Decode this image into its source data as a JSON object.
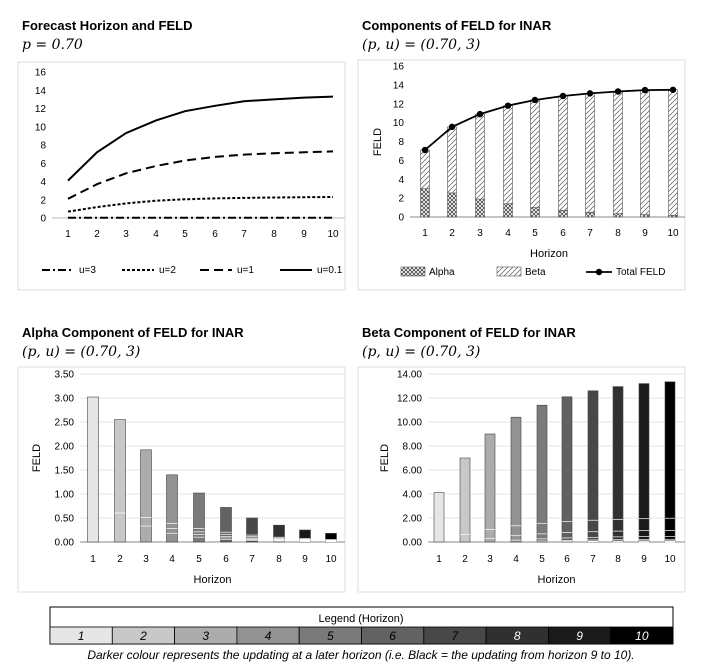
{
  "chart_data": [
    {
      "type": "line",
      "title": "Forecast Horizon and FELD",
      "subtitle": "p = 0.70",
      "x": [
        1,
        2,
        3,
        4,
        5,
        6,
        7,
        8,
        9,
        10
      ],
      "ylim": [
        0,
        16
      ],
      "yticks": [
        "0",
        "2",
        "4",
        "6",
        "8",
        "10",
        "12",
        "14",
        "16"
      ],
      "series": [
        {
          "name": "u=3",
          "style": "dashdot",
          "values": [
            0.02,
            0.02,
            0.02,
            0.02,
            0.02,
            0.02,
            0.02,
            0.02,
            0.02,
            0.02
          ]
        },
        {
          "name": "u=2",
          "style": "dotted",
          "values": [
            0.7,
            1.2,
            1.6,
            1.9,
            2.05,
            2.15,
            2.2,
            2.25,
            2.28,
            2.3
          ]
        },
        {
          "name": "u=1",
          "style": "dashed",
          "values": [
            2.1,
            3.7,
            4.9,
            5.7,
            6.3,
            6.7,
            6.95,
            7.1,
            7.2,
            7.3
          ]
        },
        {
          "name": "u=0.1",
          "style": "solid",
          "values": [
            4.1,
            7.2,
            9.3,
            10.7,
            11.7,
            12.3,
            12.8,
            13.0,
            13.2,
            13.3
          ]
        }
      ]
    },
    {
      "type": "bar",
      "title": "Components of FELD for INAR",
      "subtitle": "(p, u) = (0.70, 3)",
      "categories": [
        "1",
        "2",
        "3",
        "4",
        "5",
        "6",
        "7",
        "8",
        "9",
        "10"
      ],
      "ylim": [
        0,
        16
      ],
      "yticks": [
        "0",
        "2",
        "4",
        "6",
        "8",
        "10",
        "12",
        "14",
        "16"
      ],
      "xlabel": "Horizon",
      "ylabel": "FELD",
      "series": [
        {
          "name": "Alpha",
          "values": [
            3.0,
            2.55,
            1.9,
            1.4,
            1.0,
            0.72,
            0.5,
            0.35,
            0.25,
            0.18
          ]
        },
        {
          "name": "Beta",
          "values": [
            4.1,
            7.0,
            9.0,
            10.4,
            11.4,
            12.1,
            12.6,
            12.95,
            13.2,
            13.3
          ]
        },
        {
          "name": "Total FELD",
          "values": [
            7.1,
            9.55,
            10.9,
            11.8,
            12.4,
            12.82,
            13.1,
            13.3,
            13.45,
            13.48
          ]
        }
      ]
    },
    {
      "type": "bar",
      "title": "Alpha Component of FELD for INAR",
      "subtitle": "(p, u) = (0.70, 3)",
      "categories": [
        "1",
        "2",
        "3",
        "4",
        "5",
        "6",
        "7",
        "8",
        "9",
        "10"
      ],
      "ylim": [
        0,
        3.5
      ],
      "yticks": [
        "0.00",
        "0.50",
        "1.00",
        "1.50",
        "2.00",
        "2.50",
        "3.00",
        "3.50"
      ],
      "xlabel": "Horizon",
      "ylabel": "FELD",
      "values": [
        3.02,
        2.55,
        1.92,
        1.4,
        1.02,
        0.72,
        0.5,
        0.35,
        0.25,
        0.18
      ]
    },
    {
      "type": "bar",
      "title": "Beta Component of FELD for INAR",
      "subtitle": "(p, u) = (0.70, 3)",
      "categories": [
        "1",
        "2",
        "3",
        "4",
        "5",
        "6",
        "7",
        "8",
        "9",
        "10"
      ],
      "ylim": [
        0,
        14
      ],
      "yticks": [
        "0.00",
        "2.00",
        "4.00",
        "6.00",
        "8.00",
        "10.00",
        "12.00",
        "14.00"
      ],
      "xlabel": "Horizon",
      "ylabel": "FELD",
      "values": [
        4.12,
        7.0,
        9.0,
        10.4,
        11.4,
        12.1,
        12.6,
        12.95,
        13.2,
        13.35
      ]
    }
  ],
  "legend": {
    "title": "Legend (Horizon)",
    "items": [
      "1",
      "2",
      "3",
      "4",
      "5",
      "6",
      "7",
      "8",
      "9",
      "10"
    ],
    "colors": [
      "#e6e6e6",
      "#c8c8c8",
      "#acacac",
      "#929292",
      "#7a7a7a",
      "#626262",
      "#484848",
      "#303030",
      "#1a1a1a",
      "#000000"
    ]
  },
  "caption": "Darker colour represents the updating at a later horizon (i.e. Black = the updating from horizon 9 to 10)."
}
